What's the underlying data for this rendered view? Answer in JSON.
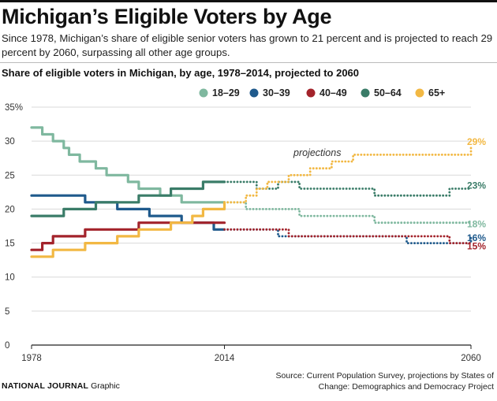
{
  "header": {
    "title": "Michigan’s Eligible Voters by Age",
    "subtitle": "Since 1978, Michigan’s share of eligible senior voters has grown to 21 percent and is projected to reach 29 percent by 2060, surpassing all other age groups.",
    "chart_title": "Share of eligible voters in Michigan, by age, 1978–2014, projected to 2060"
  },
  "footer": {
    "brand": "NATIONAL JOURNAL",
    "brand_suffix": "Graphic",
    "source": "Source: Current Population Survey, projections by States of Change: Demographics and Democracy Project"
  },
  "colors": {
    "18-29": "#7fb89f",
    "30-39": "#1f5a8c",
    "40-49": "#a3232b",
    "50-64": "#3a7c68",
    "65+": "#f2b843",
    "grid": "#d9d9d9",
    "axis": "#222222"
  },
  "chart_data": {
    "type": "line",
    "title": "Share of eligible voters in Michigan, by age, 1978–2014, projected to 2060",
    "xlim": [
      1978,
      2060
    ],
    "ylim": [
      0,
      35
    ],
    "y_ticks": [
      0,
      5,
      10,
      15,
      20,
      25,
      30,
      35
    ],
    "y_tick_labels": [
      "0",
      "5",
      "10",
      "15",
      "20",
      "25",
      "30",
      "35%"
    ],
    "x_ticks": [
      1978,
      2014,
      2060
    ],
    "x_tick_labels": [
      "1978",
      "2014",
      "2060"
    ],
    "projection_start": 2014,
    "projection_label": "projections",
    "grid": true,
    "legend_position": "top-right",
    "series": [
      {
        "name": "18–29",
        "key": "18-29",
        "actual": {
          "x": [
            1978,
            1980,
            1982,
            1984,
            1985,
            1987,
            1988,
            1990,
            1992,
            1994,
            1996,
            1998,
            2000,
            2002,
            2004,
            2006,
            2008,
            2010,
            2012,
            2014
          ],
          "y": [
            32,
            31,
            30,
            29,
            28,
            27,
            27,
            26,
            25,
            25,
            24,
            23,
            23,
            22,
            22,
            21,
            21,
            21,
            21,
            21
          ]
        },
        "projected": {
          "x": [
            2014,
            2016,
            2018,
            2020,
            2022,
            2024,
            2026,
            2028,
            2030,
            2032,
            2034,
            2036,
            2038,
            2040,
            2042,
            2044,
            2046,
            2048,
            2050,
            2052,
            2054,
            2056,
            2058,
            2060
          ],
          "y": [
            21,
            21,
            20,
            20,
            20,
            20,
            20,
            19,
            19,
            19,
            19,
            19,
            19,
            19,
            18,
            18,
            18,
            18,
            18,
            18,
            18,
            18,
            18,
            18
          ]
        },
        "end_label": "18%"
      },
      {
        "name": "30–39",
        "key": "30-39",
        "actual": {
          "x": [
            1978,
            1980,
            1982,
            1984,
            1986,
            1988,
            1990,
            1992,
            1994,
            1996,
            1998,
            2000,
            2002,
            2004,
            2006,
            2008,
            2010,
            2012,
            2014
          ],
          "y": [
            22,
            22,
            22,
            22,
            22,
            21,
            21,
            21,
            20,
            20,
            20,
            19,
            19,
            19,
            18,
            18,
            18,
            17,
            17
          ]
        },
        "projected": {
          "x": [
            2014,
            2016,
            2018,
            2020,
            2022,
            2024,
            2026,
            2028,
            2030,
            2032,
            2034,
            2036,
            2038,
            2040,
            2042,
            2044,
            2046,
            2048,
            2050,
            2052,
            2054,
            2056,
            2058,
            2060
          ],
          "y": [
            17,
            17,
            17,
            17,
            17,
            16,
            16,
            16,
            16,
            16,
            16,
            16,
            16,
            16,
            16,
            16,
            16,
            15,
            15,
            15,
            15,
            15,
            15,
            16
          ]
        },
        "end_label": "16%"
      },
      {
        "name": "40–49",
        "key": "40-49",
        "actual": {
          "x": [
            1978,
            1980,
            1982,
            1984,
            1986,
            1988,
            1990,
            1992,
            1994,
            1996,
            1998,
            2000,
            2002,
            2004,
            2006,
            2008,
            2010,
            2012,
            2014
          ],
          "y": [
            14,
            15,
            16,
            16,
            16,
            17,
            17,
            17,
            17,
            17,
            18,
            18,
            18,
            18,
            18,
            18,
            18,
            18,
            18
          ]
        },
        "projected": {
          "x": [
            2014,
            2016,
            2018,
            2020,
            2022,
            2024,
            2026,
            2028,
            2030,
            2032,
            2034,
            2036,
            2038,
            2040,
            2042,
            2044,
            2046,
            2048,
            2050,
            2052,
            2054,
            2056,
            2058,
            2060
          ],
          "y": [
            17,
            17,
            17,
            17,
            17,
            17,
            16,
            16,
            16,
            16,
            16,
            16,
            16,
            16,
            16,
            16,
            16,
            16,
            16,
            16,
            16,
            15,
            15,
            15
          ]
        },
        "end_label": "15%"
      },
      {
        "name": "50–64",
        "key": "50-64",
        "actual": {
          "x": [
            1978,
            1980,
            1982,
            1984,
            1986,
            1988,
            1990,
            1992,
            1994,
            1996,
            1998,
            2000,
            2002,
            2004,
            2006,
            2008,
            2010,
            2012,
            2014
          ],
          "y": [
            19,
            19,
            19,
            20,
            20,
            20,
            21,
            21,
            21,
            21,
            22,
            22,
            22,
            23,
            23,
            23,
            24,
            24,
            24
          ]
        },
        "projected": {
          "x": [
            2014,
            2016,
            2018,
            2020,
            2022,
            2024,
            2026,
            2028,
            2030,
            2032,
            2034,
            2036,
            2038,
            2040,
            2042,
            2044,
            2046,
            2048,
            2050,
            2052,
            2054,
            2056,
            2058,
            2060
          ],
          "y": [
            24,
            24,
            24,
            23,
            23,
            24,
            24,
            23,
            23,
            23,
            23,
            23,
            23,
            23,
            22,
            22,
            22,
            22,
            22,
            22,
            22,
            23,
            23,
            23
          ]
        },
        "end_label": "23%"
      },
      {
        "name": "65+",
        "key": "65+",
        "actual": {
          "x": [
            1978,
            1980,
            1982,
            1984,
            1986,
            1988,
            1990,
            1992,
            1994,
            1996,
            1998,
            2000,
            2002,
            2004,
            2006,
            2008,
            2010,
            2012,
            2014
          ],
          "y": [
            13,
            13,
            14,
            14,
            14,
            15,
            15,
            15,
            16,
            16,
            17,
            17,
            17,
            18,
            18,
            19,
            20,
            20,
            21
          ]
        },
        "projected": {
          "x": [
            2014,
            2016,
            2018,
            2020,
            2022,
            2024,
            2026,
            2028,
            2030,
            2032,
            2034,
            2036,
            2038,
            2040,
            2042,
            2044,
            2046,
            2048,
            2050,
            2052,
            2054,
            2056,
            2058,
            2060
          ],
          "y": [
            21,
            21,
            22,
            23,
            24,
            24,
            25,
            25,
            26,
            26,
            27,
            27,
            28,
            28,
            28,
            28,
            28,
            28,
            28,
            28,
            28,
            28,
            28,
            29
          ]
        },
        "end_label": "29%"
      }
    ]
  }
}
